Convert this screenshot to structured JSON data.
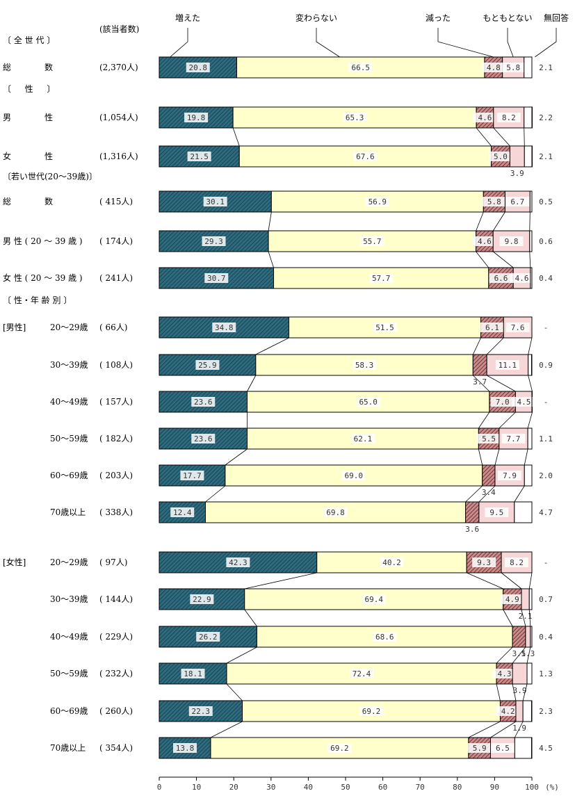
{
  "chart_data": {
    "type": "bar",
    "stacked": "horizontal-100-percent",
    "respondents_header": "(該当者数)",
    "unit_label": "(%)",
    "x_ticks": [
      "0",
      "10",
      "20",
      "30",
      "40",
      "50",
      "60",
      "70",
      "80",
      "90",
      "100"
    ],
    "xlim": [
      0,
      100
    ],
    "series": [
      {
        "name": "増えた",
        "color": "#2e6b7e",
        "pattern": "diagonal-hatch-dark"
      },
      {
        "name": "変わらない",
        "color": "#ffffcc",
        "pattern": "solid"
      },
      {
        "name": "減った",
        "color": "#8b3a3a",
        "pattern": "diagonal-hatch-red"
      },
      {
        "name": "もともとない",
        "color": "#f6d6d6",
        "pattern": "solid"
      },
      {
        "name": "無回答",
        "color": "#ffffff",
        "pattern": "solid"
      }
    ],
    "groups": [
      {
        "title": "〔 全 世 代 〕",
        "rows": [
          {
            "label": "総　　　　数",
            "count": "(2,370人)",
            "values": [
              20.8,
              66.5,
              4.8,
              5.8,
              2.1
            ],
            "texts": [
              "20.8",
              "66.5",
              "4.8",
              "5.8",
              "2.1"
            ]
          }
        ]
      },
      {
        "title": "〔 　 性 　 〕",
        "rows": [
          {
            "label": "男　　　　性",
            "count": "(1,054人)",
            "values": [
              19.8,
              65.3,
              4.6,
              8.2,
              2.2
            ],
            "texts": [
              "19.8",
              "65.3",
              "4.6",
              "8.2",
              "2.2"
            ]
          },
          {
            "label": "女　　　　性",
            "count": "(1,316人)",
            "values": [
              21.5,
              67.6,
              5.0,
              3.9,
              2.1
            ],
            "texts": [
              "21.5",
              "67.6",
              "5.0",
              "3.9",
              "2.1"
            ]
          }
        ]
      },
      {
        "title": "〔若い世代(20～39歳)〕",
        "rows": [
          {
            "label": "総　　　　数",
            "count": "( 415人)",
            "values": [
              30.1,
              56.9,
              5.8,
              6.7,
              0.5
            ],
            "texts": [
              "30.1",
              "56.9",
              "5.8",
              "6.7",
              "0.5"
            ]
          },
          {
            "label": "男 性 ( 20 ～ 39 歳 )",
            "count": "( 174人)",
            "values": [
              29.3,
              55.7,
              4.6,
              9.8,
              0.6
            ],
            "texts": [
              "29.3",
              "55.7",
              "4.6",
              "9.8",
              "0.6"
            ]
          },
          {
            "label": "女 性 ( 20 ～ 39 歳 )",
            "count": "( 241人)",
            "values": [
              30.7,
              57.7,
              6.6,
              4.6,
              0.4
            ],
            "texts": [
              "30.7",
              "57.7",
              "6.6",
              "4.6",
              "0.4"
            ]
          }
        ]
      },
      {
        "title": "〔 性・年 齢 別 〕",
        "rows": [
          {
            "prefix": "[男性]",
            "label": "20～29歳",
            "count": "(  66人)",
            "values": [
              34.8,
              51.5,
              6.1,
              7.6,
              0
            ],
            "texts": [
              "34.8",
              "51.5",
              "6.1",
              "7.6",
              "-"
            ]
          },
          {
            "label": "30～39歳",
            "count": "( 108人)",
            "values": [
              25.9,
              58.3,
              3.7,
              11.1,
              0.9
            ],
            "texts": [
              "25.9",
              "58.3",
              "3.7",
              "11.1",
              "0.9"
            ]
          },
          {
            "label": "40～49歳",
            "count": "( 157人)",
            "values": [
              23.6,
              65.0,
              7.0,
              4.5,
              0
            ],
            "texts": [
              "23.6",
              "65.0",
              "7.0",
              "4.5",
              "-"
            ]
          },
          {
            "label": "50～59歳",
            "count": "( 182人)",
            "values": [
              23.6,
              62.1,
              5.5,
              7.7,
              1.1
            ],
            "texts": [
              "23.6",
              "62.1",
              "5.5",
              "7.7",
              "1.1"
            ]
          },
          {
            "label": "60～69歳",
            "count": "( 203人)",
            "values": [
              17.7,
              69.0,
              3.4,
              7.9,
              2.0
            ],
            "texts": [
              "17.7",
              "69.0",
              "3.4",
              "7.9",
              "2.0"
            ]
          },
          {
            "label": "70歳以上",
            "count": "( 338人)",
            "values": [
              12.4,
              69.8,
              3.6,
              9.5,
              4.7
            ],
            "texts": [
              "12.4",
              "69.8",
              "3.6",
              "9.5",
              "4.7"
            ]
          },
          {
            "prefix": "[女性]",
            "label": "20～29歳",
            "count": "(  97人)",
            "values": [
              42.3,
              40.2,
              9.3,
              8.2,
              0
            ],
            "texts": [
              "42.3",
              "40.2",
              "9.3",
              "8.2",
              "-"
            ]
          },
          {
            "label": "30～39歳",
            "count": "( 144人)",
            "values": [
              22.9,
              69.4,
              4.9,
              2.1,
              0.7
            ],
            "texts": [
              "22.9",
              "69.4",
              "4.9",
              "2.1",
              "0.7"
            ]
          },
          {
            "label": "40～49歳",
            "count": "( 229人)",
            "values": [
              26.2,
              68.6,
              3.5,
              1.3,
              0.4
            ],
            "texts": [
              "26.2",
              "68.6",
              "3.5",
              "1.3",
              "0.4"
            ]
          },
          {
            "label": "50～59歳",
            "count": "( 232人)",
            "values": [
              18.1,
              72.4,
              4.3,
              3.9,
              1.3
            ],
            "texts": [
              "18.1",
              "72.4",
              "4.3",
              "3.9",
              "1.3"
            ]
          },
          {
            "label": "60～69歳",
            "count": "( 260人)",
            "values": [
              22.3,
              69.2,
              4.2,
              1.9,
              2.3
            ],
            "texts": [
              "22.3",
              "69.2",
              "4.2",
              "1.9",
              "2.3"
            ]
          },
          {
            "label": "70歳以上",
            "count": "( 354人)",
            "values": [
              13.8,
              69.2,
              5.9,
              6.5,
              4.5
            ],
            "texts": [
              "13.8",
              "69.2",
              "5.9",
              "6.5",
              "4.5"
            ]
          }
        ]
      }
    ]
  }
}
